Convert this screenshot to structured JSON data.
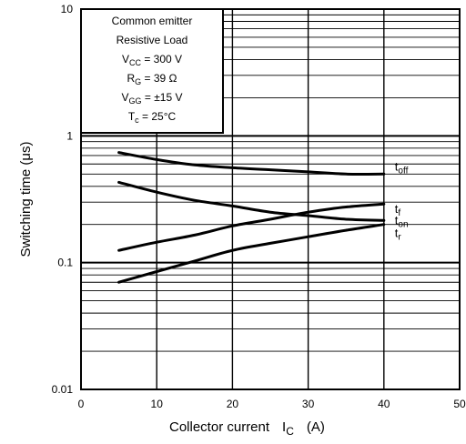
{
  "chart_data": {
    "type": "line",
    "title": "",
    "xlabel": "Collector current",
    "xlabel_symbol": "I",
    "xlabel_symbol_sub": "C",
    "xlabel_unit": "(A)",
    "ylabel": "Switching time   (μs)",
    "xlim": [
      0,
      50
    ],
    "ylim": [
      0.01,
      10
    ],
    "y_scale": "log",
    "grid": true,
    "x_ticks": [
      "0",
      "10",
      "20",
      "30",
      "40",
      "50"
    ],
    "y_ticks": [
      "0.01",
      "0.1",
      "1",
      "10"
    ],
    "annotation": {
      "line1": "Common emitter",
      "line2": "Resistive Load",
      "vcc_main": "V",
      "vcc_sub": "CC",
      "vcc_value": " = 300 V",
      "rg_main": "R",
      "rg_sub": "G",
      "rg_value": " = 39 Ω",
      "vgg_main": "V",
      "vgg_sub": "GG",
      "vgg_value": " = ±15 V",
      "tc_main": "T",
      "tc_sub": "c",
      "tc_value": " = 25°C"
    },
    "series": [
      {
        "main": "t",
        "sub": "off",
        "x": [
          5,
          10,
          15,
          20,
          25,
          30,
          35,
          40
        ],
        "y": [
          0.74,
          0.65,
          0.59,
          0.56,
          0.54,
          0.52,
          0.5,
          0.5
        ]
      },
      {
        "main": "t",
        "sub": "on",
        "x": [
          5,
          10,
          15,
          20,
          25,
          30,
          35,
          40
        ],
        "y": [
          0.43,
          0.36,
          0.31,
          0.28,
          0.25,
          0.235,
          0.22,
          0.215
        ]
      },
      {
        "main": "t",
        "sub": "f",
        "x": [
          5,
          10,
          15,
          20,
          25,
          30,
          35,
          40
        ],
        "y": [
          0.125,
          0.145,
          0.165,
          0.195,
          0.22,
          0.25,
          0.275,
          0.29
        ]
      },
      {
        "main": "t",
        "sub": "r",
        "x": [
          5,
          10,
          15,
          20,
          25,
          30,
          35,
          40
        ],
        "y": [
          0.07,
          0.085,
          0.103,
          0.125,
          0.142,
          0.16,
          0.18,
          0.2
        ]
      }
    ]
  }
}
